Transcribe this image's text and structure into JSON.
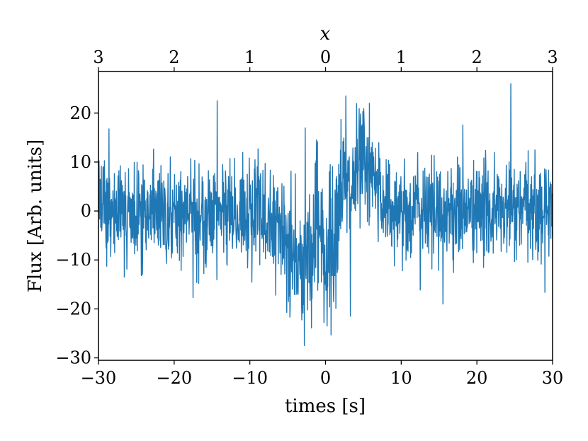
{
  "chart_data": {
    "type": "line",
    "title": "",
    "xlabel": "times [s]",
    "ylabel": "Flux [Arb. units]",
    "top_xlabel": "x",
    "xlim": [
      -30,
      30
    ],
    "ylim": [
      -30.5,
      28.5
    ],
    "x_ticks": [
      -30,
      -20,
      -10,
      0,
      10,
      20,
      30
    ],
    "x_tick_labels": [
      "−30",
      "−20",
      "−10",
      "0",
      "10",
      "20",
      "30"
    ],
    "y_ticks": [
      -30,
      -20,
      -10,
      0,
      10,
      20
    ],
    "y_tick_labels": [
      "−30",
      "−20",
      "−10",
      "0",
      "10",
      "20"
    ],
    "top_ticks": [
      -30,
      -20,
      -10,
      0,
      10,
      20,
      30
    ],
    "top_tick_labels": [
      "3",
      "2",
      "1",
      "0",
      "1",
      "2",
      "3"
    ],
    "grid": false,
    "line_color": "#1f77b4",
    "signal_envelope": [
      {
        "t": -30,
        "mean": 0,
        "noise": 5.0
      },
      {
        "t": -8,
        "mean": -1,
        "noise": 5.5
      },
      {
        "t": -5,
        "mean": -5,
        "noise": 6.0
      },
      {
        "t": -3,
        "mean": -12,
        "noise": 7.0
      },
      {
        "t": -2,
        "mean": -10,
        "noise": 7.0
      },
      {
        "t": -1,
        "mean": 0,
        "noise": 8.0
      },
      {
        "t": 0,
        "mean": -10,
        "noise": 8.0
      },
      {
        "t": 1,
        "mean": -6,
        "noise": 7.0
      },
      {
        "t": 2,
        "mean": 6,
        "noise": 7.0
      },
      {
        "t": 3,
        "mean": 3,
        "noise": 7.0
      },
      {
        "t": 5,
        "mean": 10,
        "noise": 6.0
      },
      {
        "t": 7,
        "mean": 4,
        "noise": 5.5
      },
      {
        "t": 9,
        "mean": 0,
        "noise": 5.0
      },
      {
        "t": 30,
        "mean": 0,
        "noise": 5.0
      }
    ],
    "num_samples": 1600,
    "peaks": [
      {
        "t": -14.3,
        "y": 22.5
      },
      {
        "t": 24.5,
        "y": 26.0
      },
      {
        "t": 2.7,
        "y": 23.5
      },
      {
        "t": 5.8,
        "y": 22.0
      },
      {
        "t": -2.8,
        "y": -27.5
      },
      {
        "t": 0.2,
        "y": -23.5
      },
      {
        "t": 3.3,
        "y": -21.5
      },
      {
        "t": 15.5,
        "y": -19.0
      }
    ]
  }
}
